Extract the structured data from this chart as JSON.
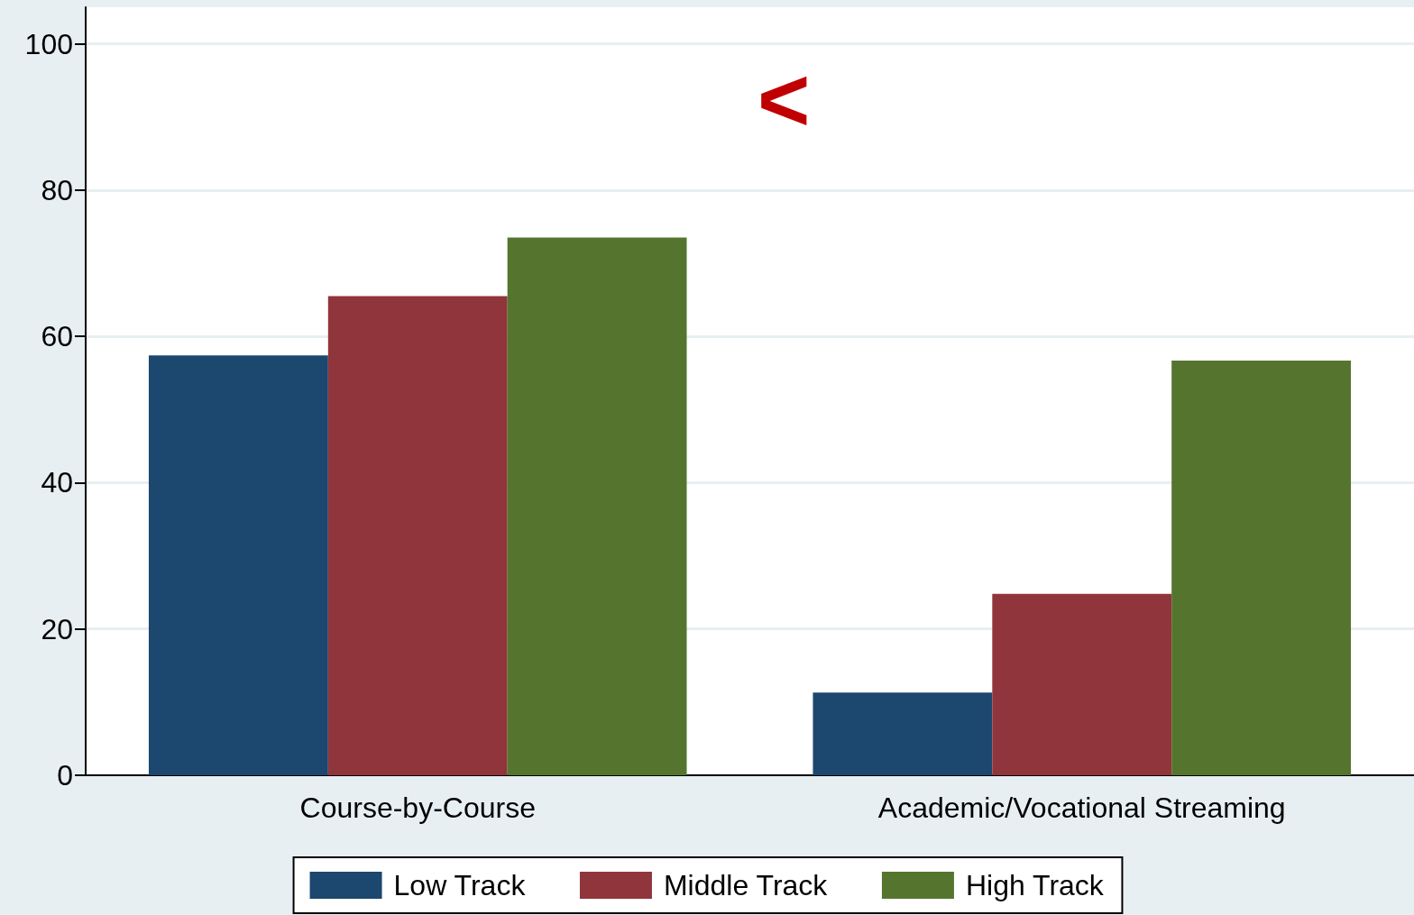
{
  "chart_data": {
    "type": "bar",
    "categories": [
      "Course-by-Course",
      "Academic/Vocational Streaming"
    ],
    "series": [
      {
        "name": "Low Track",
        "color": "#1c476e",
        "values": [
          57.4,
          11.3
        ]
      },
      {
        "name": "Middle Track",
        "color": "#90353b",
        "values": [
          65.5,
          24.8
        ]
      },
      {
        "name": "High Track",
        "color": "#55752f",
        "values": [
          73.5,
          56.7
        ]
      }
    ],
    "ylim": [
      0,
      105
    ],
    "yticks": [
      0,
      20,
      40,
      60,
      80,
      100
    ],
    "grid": "y",
    "legend": "bottom",
    "annotations": [
      "<"
    ]
  }
}
